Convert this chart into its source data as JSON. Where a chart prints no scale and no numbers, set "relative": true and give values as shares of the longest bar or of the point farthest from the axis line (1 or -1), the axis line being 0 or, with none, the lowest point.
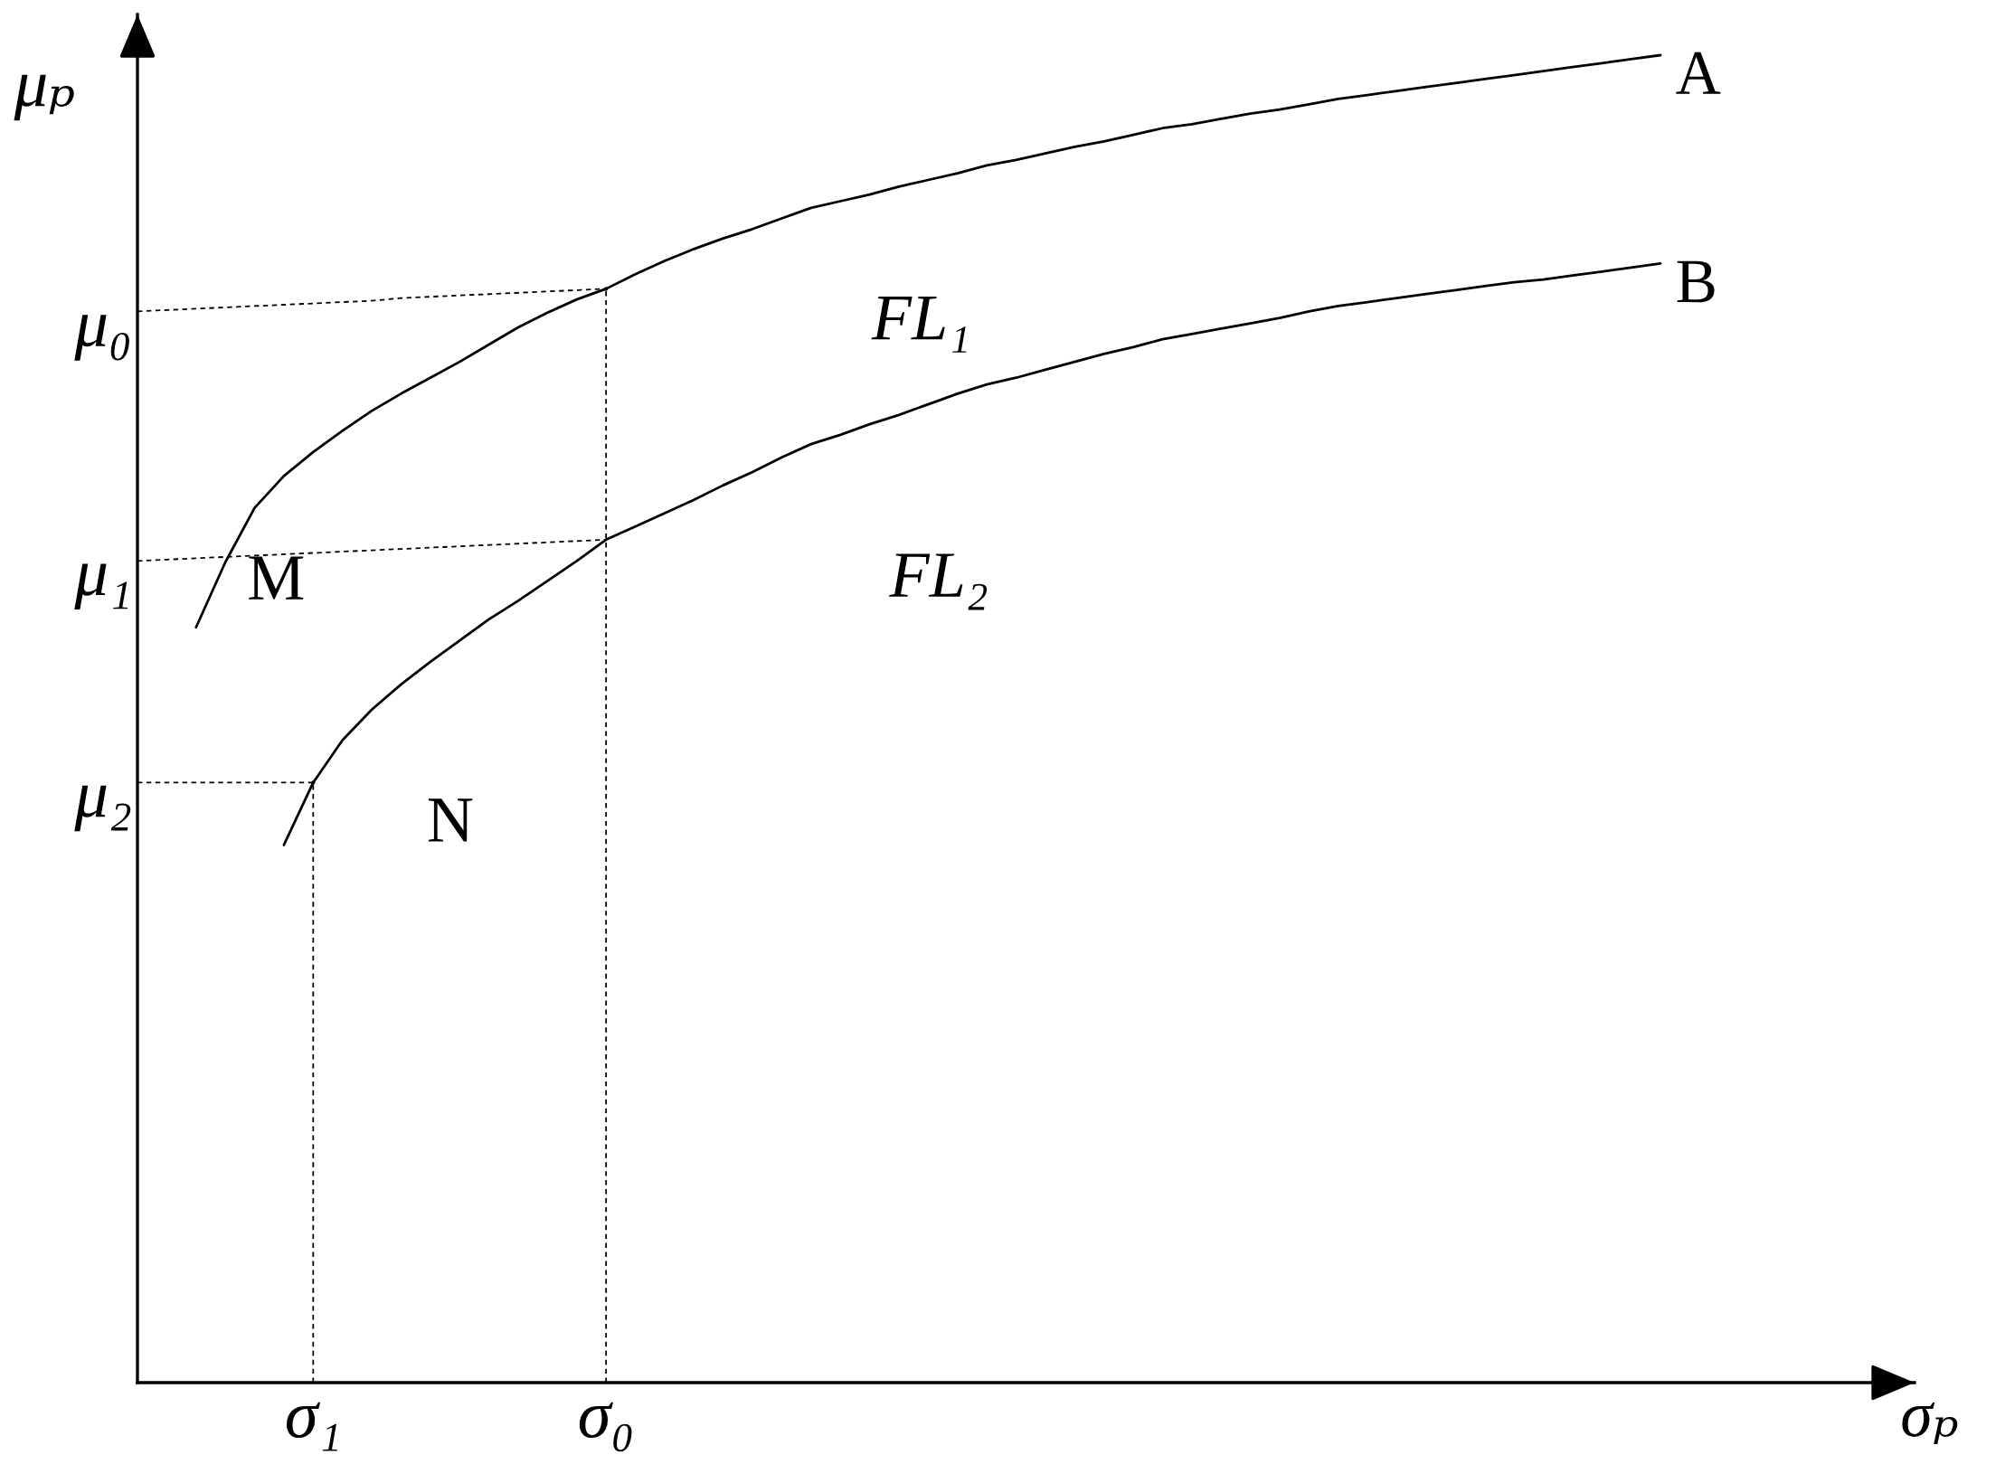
{
  "chart_data": {
    "type": "line",
    "relative": true,
    "xlabel": "σₚ",
    "ylabel": "μₚ",
    "line_style": "solid",
    "categories": [
      null,
      null,
      null,
      null,
      null,
      null,
      "σ₁",
      null,
      null,
      null,
      null,
      null,
      null,
      null,
      null,
      null,
      "σ₀",
      null,
      null,
      null,
      null,
      null,
      null,
      null,
      null,
      null,
      null,
      null,
      null,
      null,
      null,
      null,
      null,
      null,
      null,
      null,
      null,
      null,
      null,
      null,
      null,
      null,
      null,
      null,
      null,
      null,
      null,
      null,
      null,
      null,
      null,
      null,
      null
    ],
    "series": [
      {
        "name": "A",
        "color": "#000000",
        "values": [
          null,
          null,
          0.569,
          0.618,
          0.659,
          0.683,
          0.701,
          0.717,
          0.732,
          0.745,
          0.757,
          0.769,
          0.782,
          0.795,
          0.806,
          0.816,
          0.824,
          0.835,
          0.845,
          0.854,
          0.862,
          0.869,
          0.877,
          0.885,
          0.89,
          0.895,
          0.901,
          0.906,
          0.911,
          0.917,
          0.921,
          0.926,
          0.931,
          0.935,
          0.94,
          0.945,
          0.948,
          0.952,
          0.956,
          0.959,
          0.963,
          0.967,
          0.97,
          0.973,
          0.976,
          0.979,
          0.982,
          0.985,
          0.988,
          0.991,
          0.994,
          0.997,
          1.0
        ]
      },
      {
        "name": "B",
        "color": "#000000",
        "values": [
          null,
          null,
          null,
          null,
          null,
          0.405,
          0.452,
          0.484,
          0.507,
          0.526,
          0.543,
          0.559,
          0.575,
          0.589,
          0.604,
          0.619,
          0.635,
          0.645,
          0.655,
          0.665,
          0.676,
          0.686,
          0.697,
          0.707,
          0.714,
          0.722,
          0.729,
          0.737,
          0.745,
          0.752,
          0.757,
          0.763,
          0.769,
          0.775,
          0.78,
          0.786,
          0.79,
          0.794,
          0.798,
          0.802,
          0.807,
          0.811,
          0.814,
          0.817,
          0.82,
          0.823,
          0.826,
          0.829,
          0.831,
          0.834,
          0.837,
          0.84,
          0.843
        ]
      },
      {
        "color": "#000000",
        "line_style": "dashed",
        "values": [
          0.807,
          0.808,
          0.809,
          0.81,
          0.811,
          0.812,
          0.813,
          0.814,
          0.815,
          0.817,
          0.818,
          0.819,
          0.82,
          0.821,
          0.822,
          0.823,
          0.824,
          null,
          null,
          null,
          null,
          null,
          null,
          null,
          null,
          null,
          null,
          null,
          null,
          null,
          null,
          null,
          null,
          null,
          null,
          null,
          null,
          null,
          null,
          null,
          null,
          null,
          null,
          null,
          null,
          null,
          null,
          null,
          null,
          null,
          null,
          null,
          null
        ]
      },
      {
        "color": "#000000",
        "line_style": "dashed",
        "values": [
          0.619,
          0.62,
          0.621,
          0.622,
          0.623,
          0.624,
          0.625,
          0.626,
          0.627,
          0.628,
          0.629,
          0.63,
          0.631,
          0.632,
          0.633,
          0.634,
          0.635,
          null,
          null,
          null,
          null,
          null,
          null,
          null,
          null,
          null,
          null,
          null,
          null,
          null,
          null,
          null,
          null,
          null,
          null,
          null,
          null,
          null,
          null,
          null,
          null,
          null,
          null,
          null,
          null,
          null,
          null,
          null,
          null,
          null,
          null,
          null,
          null
        ]
      },
      {
        "color": "#000000",
        "line_style": "dashed",
        "values": [
          0.452,
          0.452,
          0.452,
          0.452,
          0.452,
          0.452,
          0.452,
          null,
          null,
          null,
          null,
          null,
          null,
          null,
          null,
          null,
          null,
          null,
          null,
          null,
          null,
          null,
          null,
          null,
          null,
          null,
          null,
          null,
          null,
          null,
          null,
          null,
          null,
          null,
          null,
          null,
          null,
          null,
          null,
          null,
          null,
          null,
          null,
          null,
          null,
          null,
          null,
          null,
          null,
          null,
          null,
          null,
          null
        ]
      },
      {
        "type": "lollipop",
        "color": "#000000",
        "line_style": "dashed",
        "values": [
          null,
          null,
          null,
          null,
          null,
          null,
          0.452,
          null,
          null,
          null,
          null,
          null,
          null,
          null,
          null,
          null,
          0.824,
          null,
          null,
          null,
          null,
          null,
          null,
          null,
          null,
          null,
          null,
          null,
          null,
          null,
          null,
          null,
          null,
          null,
          null,
          null,
          null,
          null,
          null,
          null,
          null,
          null,
          null,
          null,
          null,
          null,
          null,
          null,
          null,
          null,
          null,
          null,
          null
        ]
      }
    ],
    "annotations": [
      "FL₁",
      "FL₂",
      "M",
      "N",
      "μ₀",
      "μ₁",
      "μ₂"
    ]
  }
}
